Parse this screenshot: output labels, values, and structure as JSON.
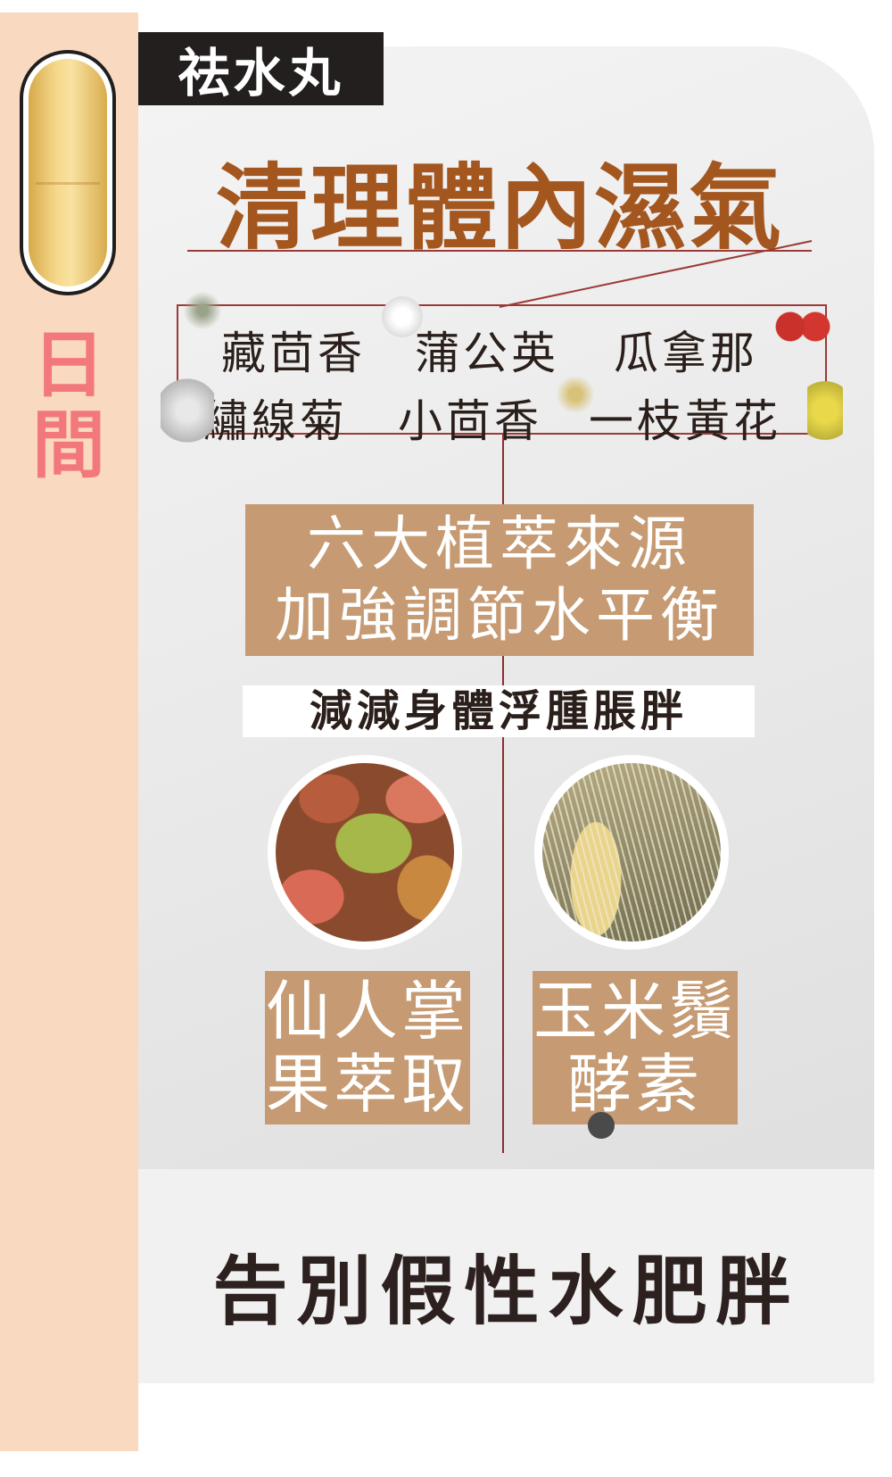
{
  "sidebar": {
    "period_line1": "日",
    "period_line2": "間"
  },
  "product_tag": "祛水丸",
  "title": "清理體內濕氣",
  "herbs": [
    "藏茴香",
    "蒲公英",
    "瓜拿那",
    "繡線菊",
    "小茴香",
    "一枝黃花"
  ],
  "benefit": {
    "line1": "六大植萃來源",
    "line2": "加強調節水平衡"
  },
  "subline": "減減身體浮腫脹胖",
  "ingredients": [
    {
      "line1": "仙人掌",
      "line2": "果萃取",
      "image": "prickly-pear"
    },
    {
      "line1": "玉米鬚",
      "line2": "酵素",
      "image": "corn-silk"
    }
  ],
  "tagline": "告別假性水肥胖",
  "colors": {
    "accent": "#a4561f",
    "side_bg": "#f9d9bf",
    "label_bg": "#c69a72",
    "side_text": "#f2787c",
    "line": "#9b3a36"
  }
}
